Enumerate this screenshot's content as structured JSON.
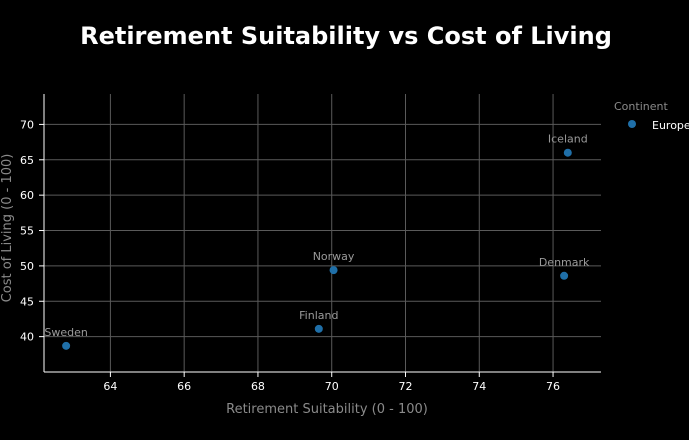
{
  "chart_data": {
    "type": "scatter",
    "title": "Retirement Suitability vs Cost of Living",
    "xlabel": "Retirement Suitability (0 - 100)",
    "ylabel": "Cost of Living (0 - 100)",
    "xlim": [
      62.2,
      77.3
    ],
    "ylim": [
      35,
      74.3
    ],
    "x_ticks": [
      64,
      66,
      68,
      70,
      72,
      74,
      76
    ],
    "y_ticks": [
      40,
      45,
      50,
      55,
      60,
      65,
      70
    ],
    "grid": true,
    "legend": {
      "title": "Continent",
      "placement": "right",
      "entries": [
        "Europe"
      ]
    },
    "series": [
      {
        "name": "Europe",
        "color": "#1f6fa8",
        "points": [
          {
            "label": "Iceland",
            "x": 76.4,
            "y": 66.0
          },
          {
            "label": "Norway",
            "x": 70.05,
            "y": 49.4
          },
          {
            "label": "Denmark",
            "x": 76.3,
            "y": 48.6
          },
          {
            "label": "Finland",
            "x": 69.65,
            "y": 41.1
          },
          {
            "label": "Sweden",
            "x": 62.8,
            "y": 38.7
          }
        ]
      }
    ]
  },
  "colors": {
    "background": "#000000",
    "title": "#ffffff",
    "axis_label": "#8a8a8a",
    "tick_label": "#ffffff",
    "grid": "#5a5a5a",
    "point_label": "#9a9a9a"
  }
}
